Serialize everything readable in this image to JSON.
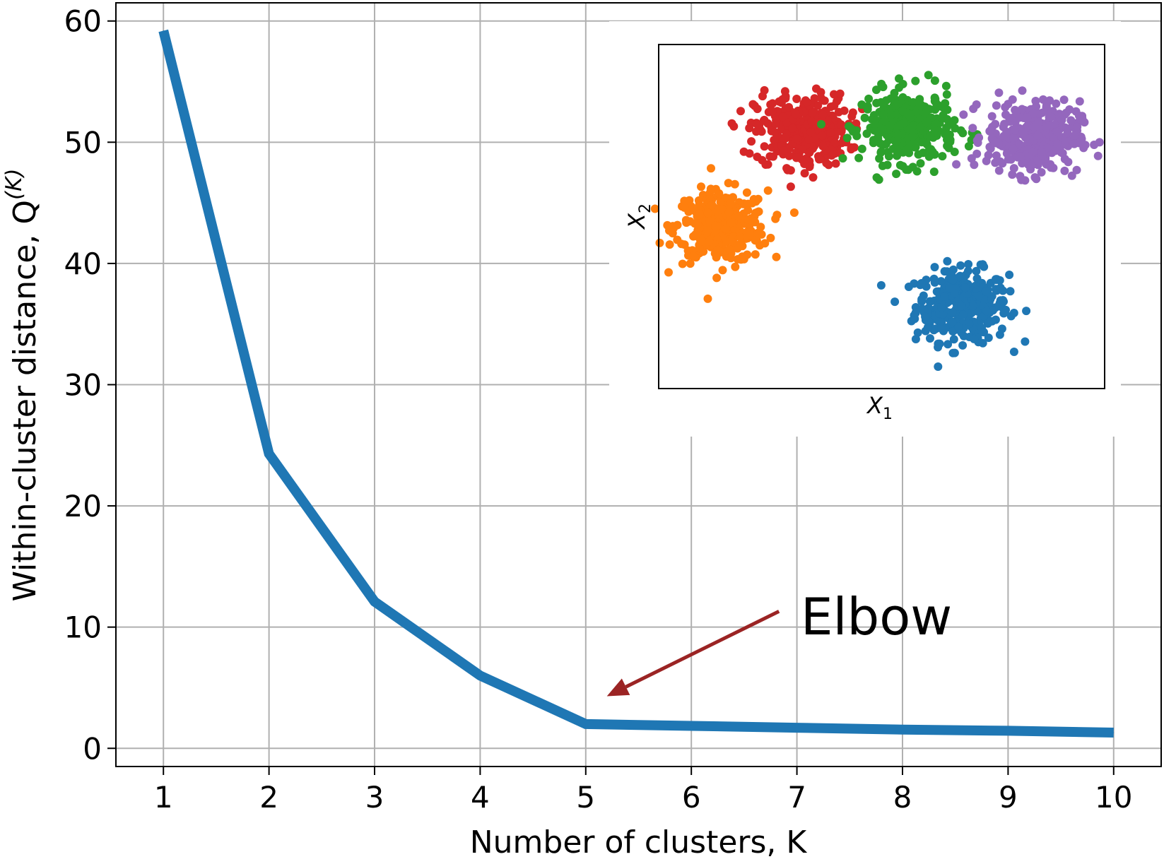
{
  "chart_data": [
    {
      "type": "line",
      "x": [
        1,
        2,
        3,
        4,
        5,
        6,
        7,
        8,
        9,
        10
      ],
      "series": [
        {
          "values": [
            59.2,
            24.3,
            12.1,
            6.0,
            2.0,
            1.85,
            1.7,
            1.55,
            1.45,
            1.3
          ],
          "color": "#1f77b4"
        }
      ],
      "xlabel": "Number of clusters, K",
      "ylabel": "Within-cluster distance, Q",
      "ylabel_superscript": "(K)",
      "xlim": [
        0.55,
        10.45
      ],
      "ylim": [
        -1.5,
        61.5
      ],
      "xticks": [
        1,
        2,
        3,
        4,
        5,
        6,
        7,
        8,
        9,
        10
      ],
      "yticks": [
        0,
        10,
        20,
        30,
        40,
        50,
        60
      ],
      "grid": true,
      "annotation": {
        "text": "Elbow",
        "arrow_from": [
          6.83,
          11.3
        ],
        "arrow_to": [
          5.2,
          4.3
        ],
        "color": "#9b2424"
      }
    },
    {
      "type": "scatter",
      "inset": true,
      "xlabel": "X",
      "xlabel_subscript": "1",
      "ylabel": "X",
      "ylabel_subscript": "2",
      "xlim": [
        0,
        10
      ],
      "ylim": [
        0,
        10
      ],
      "ticks": false,
      "clusters": [
        {
          "color": "#1f77b4",
          "center": [
            6.8,
            2.4
          ],
          "spread": 0.52,
          "n": 340
        },
        {
          "color": "#ff7f0e",
          "center": [
            1.4,
            4.7
          ],
          "spread": 0.52,
          "n": 340
        },
        {
          "color": "#d62728",
          "center": [
            3.2,
            7.5
          ],
          "spread": 0.52,
          "n": 340
        },
        {
          "color": "#2ca02c",
          "center": [
            5.6,
            7.6
          ],
          "spread": 0.52,
          "n": 340
        },
        {
          "color": "#9467bd",
          "center": [
            8.4,
            7.3
          ],
          "spread": 0.52,
          "n": 340
        }
      ]
    }
  ]
}
